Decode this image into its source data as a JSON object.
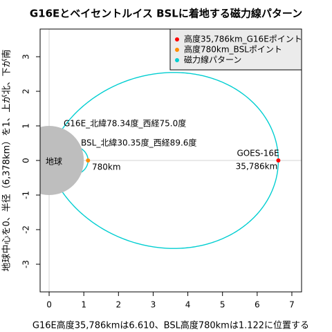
{
  "chart_data": {
    "type": "dipole",
    "title": "G16Eとベイセントルイス BSLに着地する磁力線パターン",
    "xlabel": "G16E高度35,786kmは6.610、BSL高度780kmは1.122に位置する",
    "ylabel": "地球中心を0、半径（6,378km）を1、上が北、下が南",
    "xlim": [
      -0.26,
      7.28
    ],
    "ylim": [
      -3.8,
      3.8
    ],
    "xticks": [
      0,
      1,
      2,
      3,
      4,
      5,
      6,
      7
    ],
    "yticks": [
      -3,
      -2,
      -1,
      0,
      1,
      2,
      3
    ],
    "earth": {
      "label": "地球",
      "radius": 1,
      "color": "#bebebe"
    },
    "field_line": {
      "name": "磁力線パターン",
      "color": "#00CED1"
    },
    "series": [
      {
        "name": "高度35,786km_G16Eポイント",
        "color": "#ff0000",
        "x": [
          6.61
        ],
        "y": [
          0
        ]
      },
      {
        "name": "高度780km_BSLポイント",
        "color": "#ff8c00",
        "x": [
          1.122
        ],
        "y": [
          0
        ]
      }
    ],
    "annotations": [
      "G16E_北緯78.34度_西経75.0度",
      "BSL_北緯30.35度_西経89.6度",
      "780km",
      "GOES-16E",
      "35,786km"
    ],
    "legend": "top-right"
  }
}
